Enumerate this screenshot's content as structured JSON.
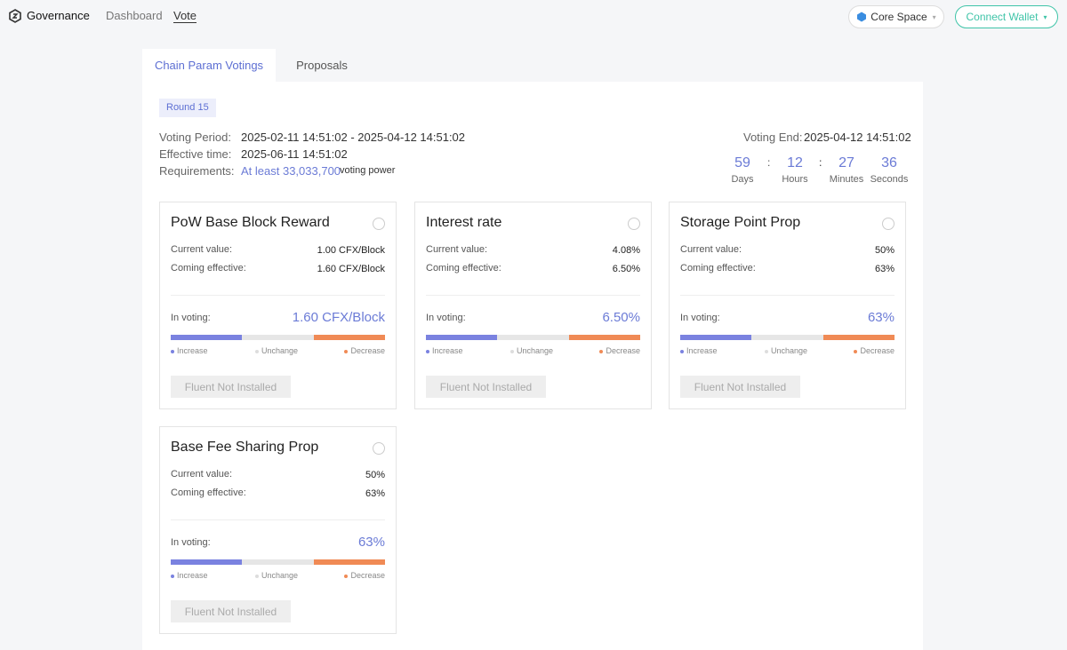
{
  "nav": {
    "brand": "Governance",
    "links": [
      "Dashboard",
      "Vote"
    ],
    "network": "Core Space",
    "wallet": "Connect Wallet"
  },
  "tabs": [
    "Chain Param Votings",
    "Proposals"
  ],
  "round": "Round 15",
  "info": {
    "period_label": "Voting Period:",
    "period": "2025-02-11 14:51:02 - 2025-04-12 14:51:02",
    "effective_label": "Effective time:",
    "effective": "2025-06-11 14:51:02",
    "req_label": "Requirements:",
    "req_link": "At least 33,033,700",
    "req_suffix": "voting power",
    "end_label": "Voting End:",
    "end": "2025-04-12 14:51:02"
  },
  "countdown": {
    "separator": ":",
    "items": [
      {
        "value": 59,
        "unit": "Days"
      },
      {
        "value": 12,
        "unit": "Hours"
      },
      {
        "value": 27,
        "unit": "Minutes"
      },
      {
        "value": 36,
        "unit": "Seconds"
      }
    ]
  },
  "card_labels": {
    "current": "Current value:",
    "coming": "Coming effective:",
    "voting": "In voting:",
    "legend": [
      "Increase",
      "Unchange",
      "Decrease"
    ],
    "button": "Fluent Not Installed"
  },
  "cards": [
    {
      "title": "PoW Base Block Reward",
      "current": "1.00 CFX/Block",
      "coming": "1.60 CFX/Block",
      "voting": "1.60 CFX/Block"
    },
    {
      "title": "Interest rate",
      "current": "4.08%",
      "coming": "6.50%",
      "voting": "6.50%"
    },
    {
      "title": "Storage Point Prop",
      "current": "50%",
      "coming": "63%",
      "voting": "63%"
    },
    {
      "title": "Base Fee Sharing Prop",
      "current": "50%",
      "coming": "63%",
      "voting": "63%"
    }
  ]
}
